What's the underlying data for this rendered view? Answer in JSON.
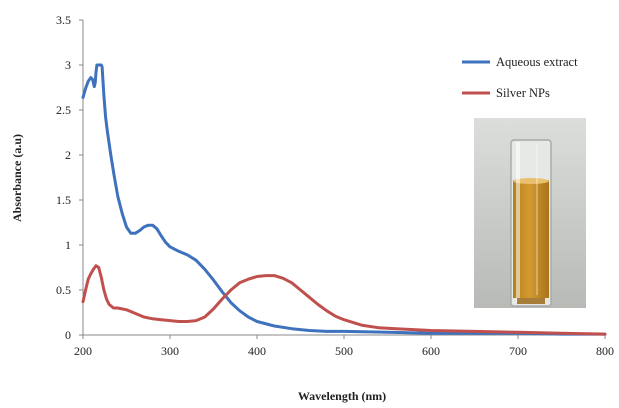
{
  "chart_data": {
    "type": "line",
    "title": "",
    "xlabel": "Wavelength (nm)",
    "ylabel": "Absorbance (a.u)",
    "xlim": [
      200,
      800
    ],
    "ylim": [
      0,
      3.5
    ],
    "xticks": [
      200,
      300,
      400,
      500,
      600,
      700,
      800
    ],
    "yticks": [
      0,
      0.5,
      1,
      1.5,
      2,
      2.5,
      3,
      3.5
    ],
    "xtick_labels": [
      "200",
      "300",
      "400",
      "500",
      "600",
      "700",
      "800"
    ],
    "ytick_labels": [
      "0",
      "0.5",
      "1",
      "1.5",
      "2",
      "2.5",
      "3",
      "3.5"
    ],
    "grid": false,
    "legend_position": "top-right",
    "inset": "photo of a cuvette containing an amber-colored liquid",
    "series": [
      {
        "name": "Aqueous extract",
        "color": "#3f72bd",
        "x": [
          200,
          203,
          206,
          209,
          211,
          213,
          214,
          215,
          216,
          218,
          220,
          221,
          222,
          224,
          226,
          228,
          232,
          236,
          240,
          245,
          250,
          255,
          260,
          265,
          270,
          275,
          280,
          285,
          290,
          295,
          300,
          310,
          320,
          330,
          340,
          350,
          360,
          370,
          380,
          390,
          400,
          420,
          440,
          460,
          480,
          500,
          550,
          600,
          650,
          700,
          750,
          800
        ],
        "y": [
          2.64,
          2.74,
          2.82,
          2.86,
          2.84,
          2.76,
          2.8,
          2.92,
          3.0,
          3.0,
          3.0,
          3.0,
          2.98,
          2.66,
          2.42,
          2.26,
          2.0,
          1.76,
          1.54,
          1.35,
          1.2,
          1.13,
          1.13,
          1.16,
          1.2,
          1.22,
          1.22,
          1.18,
          1.1,
          1.03,
          0.98,
          0.93,
          0.89,
          0.83,
          0.73,
          0.61,
          0.48,
          0.36,
          0.27,
          0.2,
          0.15,
          0.1,
          0.07,
          0.05,
          0.04,
          0.04,
          0.03,
          0.02,
          0.02,
          0.02,
          0.01,
          0.01
        ]
      },
      {
        "name": "Silver NPs",
        "color": "#c0504d",
        "x": [
          200,
          203,
          206,
          209,
          212,
          215,
          218,
          221,
          224,
          227,
          230,
          235,
          240,
          250,
          260,
          270,
          280,
          290,
          300,
          310,
          320,
          330,
          340,
          350,
          360,
          370,
          380,
          390,
          400,
          410,
          420,
          430,
          440,
          450,
          460,
          470,
          480,
          490,
          500,
          520,
          540,
          560,
          580,
          600,
          650,
          700,
          750,
          800
        ],
        "y": [
          0.37,
          0.5,
          0.62,
          0.68,
          0.73,
          0.77,
          0.75,
          0.64,
          0.5,
          0.4,
          0.34,
          0.3,
          0.3,
          0.28,
          0.24,
          0.2,
          0.18,
          0.17,
          0.16,
          0.15,
          0.15,
          0.16,
          0.2,
          0.29,
          0.4,
          0.5,
          0.58,
          0.62,
          0.65,
          0.66,
          0.66,
          0.63,
          0.58,
          0.5,
          0.42,
          0.34,
          0.27,
          0.21,
          0.17,
          0.11,
          0.08,
          0.07,
          0.06,
          0.05,
          0.04,
          0.03,
          0.02,
          0.01
        ]
      }
    ]
  }
}
